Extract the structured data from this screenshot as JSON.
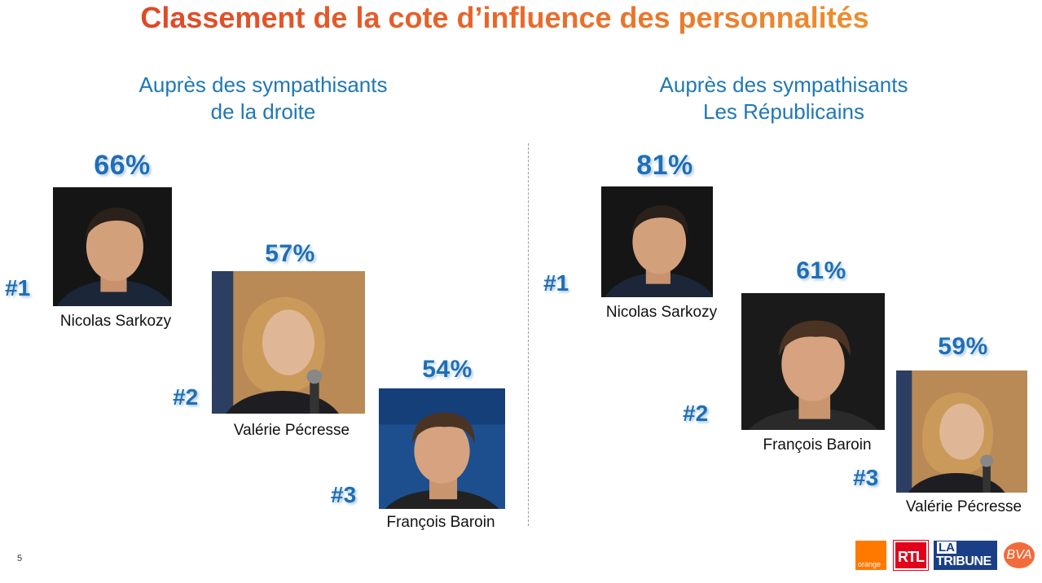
{
  "title": "Classement de la cote d’influence des personnalités",
  "page_number": "5",
  "logos": {
    "orange": "orange",
    "rtl": "RTL",
    "tribune_la": "LA",
    "tribune_name": "TRIBUNE",
    "bva": "BVA"
  },
  "colors": {
    "title_start": "#dc3b24",
    "title_end": "#f0a030",
    "accent_blue": "#1f6eb5",
    "subtitle_blue": "#1f78b4"
  },
  "chart_data": [
    {
      "type": "table",
      "subtitle_line1": "Auprès des sympathisants",
      "subtitle_line2": "de la droite",
      "ranking": [
        {
          "rank": "#1",
          "name": "Nicolas Sarkozy",
          "value_label": "66%",
          "value": 66
        },
        {
          "rank": "#2",
          "name": "Valérie Pécresse",
          "value_label": "57%",
          "value": 57
        },
        {
          "rank": "#3",
          "name": "François Baroin",
          "value_label": "54%",
          "value": 54
        }
      ]
    },
    {
      "type": "table",
      "subtitle_line1": "Auprès des sympathisants",
      "subtitle_line2": "Les Républicains",
      "ranking": [
        {
          "rank": "#1",
          "name": "Nicolas Sarkozy",
          "value_label": "81%",
          "value": 81
        },
        {
          "rank": "#2",
          "name": "François Baroin",
          "value_label": "61%",
          "value": 61
        },
        {
          "rank": "#3",
          "name": "Valérie Pécresse",
          "value_label": "59%",
          "value": 59
        }
      ]
    }
  ]
}
